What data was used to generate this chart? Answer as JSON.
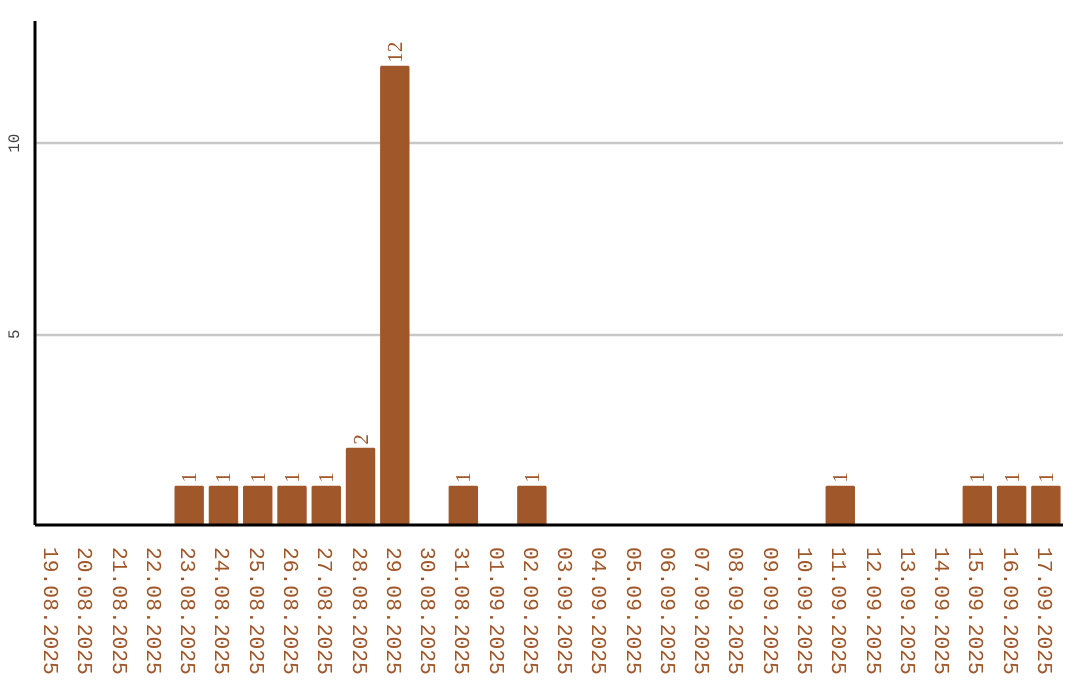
{
  "chart_data": {
    "type": "bar",
    "categories": [
      "19.08.2025",
      "20.08.2025",
      "21.08.2025",
      "22.08.2025",
      "23.08.2025",
      "24.08.2025",
      "25.08.2025",
      "26.08.2025",
      "27.08.2025",
      "28.08.2025",
      "29.08.2025",
      "30.08.2025",
      "31.08.2025",
      "01.09.2025",
      "02.09.2025",
      "03.09.2025",
      "04.09.2025",
      "05.09.2025",
      "06.09.2025",
      "07.09.2025",
      "08.09.2025",
      "09.09.2025",
      "10.09.2025",
      "11.09.2025",
      "12.09.2025",
      "13.09.2025",
      "14.09.2025",
      "15.09.2025",
      "16.09.2025",
      "17.09.2025"
    ],
    "values": [
      0,
      0,
      0,
      0,
      1,
      1,
      1,
      1,
      1,
      2,
      12,
      0,
      1,
      0,
      1,
      0,
      0,
      0,
      0,
      0,
      0,
      0,
      0,
      1,
      0,
      0,
      0,
      1,
      1,
      1
    ],
    "value_labels": [
      null,
      null,
      null,
      null,
      "1",
      "1",
      "1",
      "1",
      "1",
      "2",
      "12",
      null,
      "1",
      null,
      "1",
      null,
      null,
      null,
      null,
      null,
      null,
      null,
      null,
      "1",
      null,
      null,
      null,
      "1",
      "1",
      "1"
    ],
    "color": "#a0572a",
    "ylim": [
      0,
      13.2
    ],
    "yticks": [
      5,
      10
    ],
    "grid": "y"
  }
}
